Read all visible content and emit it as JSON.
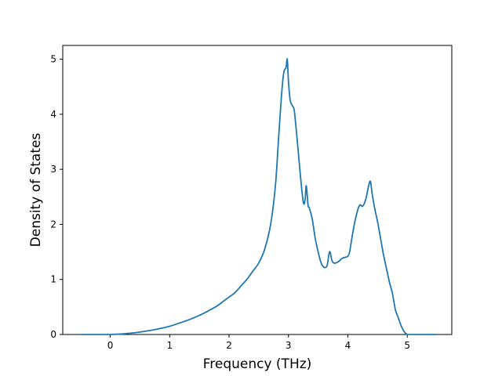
{
  "chart_data": {
    "type": "line",
    "title": "",
    "xlabel": "Frequency (THz)",
    "ylabel": "Density of States",
    "xlim": [
      -0.8,
      5.75
    ],
    "ylim": [
      0,
      5.25
    ],
    "xticks": [
      0,
      1,
      2,
      3,
      4,
      5
    ],
    "yticks": [
      0,
      1,
      2,
      3,
      4,
      5
    ],
    "grid": false,
    "legend": "none",
    "colors": {
      "line": "#1f77b4"
    },
    "series": [
      {
        "x": [
          -0.5,
          -0.2,
          0.0,
          0.2,
          0.4,
          0.6,
          0.8,
          1.0,
          1.2,
          1.4,
          1.6,
          1.8,
          1.9,
          2.0,
          2.1,
          2.2,
          2.3,
          2.4,
          2.5,
          2.6,
          2.7,
          2.78,
          2.83,
          2.88,
          2.92,
          2.96,
          2.98,
          3.0,
          3.03,
          3.07,
          3.1,
          3.15,
          3.2,
          3.25,
          3.28,
          3.3,
          3.33,
          3.35,
          3.4,
          3.45,
          3.5,
          3.55,
          3.6,
          3.65,
          3.68,
          3.7,
          3.73,
          3.76,
          3.8,
          3.85,
          3.9,
          3.95,
          4.0,
          4.03,
          4.06,
          4.1,
          4.15,
          4.2,
          4.25,
          4.3,
          4.35,
          4.38,
          4.41,
          4.45,
          4.5,
          4.55,
          4.6,
          4.65,
          4.7,
          4.75,
          4.8,
          4.85,
          4.9,
          4.95,
          5.0,
          5.1,
          5.3,
          5.48
        ],
        "y": [
          0,
          0,
          0,
          0.01,
          0.03,
          0.06,
          0.1,
          0.15,
          0.22,
          0.3,
          0.4,
          0.52,
          0.6,
          0.68,
          0.76,
          0.88,
          1.0,
          1.15,
          1.3,
          1.55,
          2.0,
          2.7,
          3.5,
          4.3,
          4.75,
          4.85,
          5.0,
          4.6,
          4.25,
          4.15,
          4.05,
          3.5,
          2.9,
          2.4,
          2.45,
          2.7,
          2.35,
          2.3,
          2.1,
          1.75,
          1.5,
          1.3,
          1.22,
          1.25,
          1.45,
          1.5,
          1.35,
          1.3,
          1.3,
          1.33,
          1.38,
          1.4,
          1.42,
          1.5,
          1.7,
          1.95,
          2.2,
          2.35,
          2.33,
          2.45,
          2.7,
          2.78,
          2.55,
          2.3,
          2.05,
          1.75,
          1.45,
          1.2,
          0.95,
          0.75,
          0.45,
          0.3,
          0.15,
          0.05,
          0,
          0,
          0,
          0
        ]
      }
    ]
  }
}
